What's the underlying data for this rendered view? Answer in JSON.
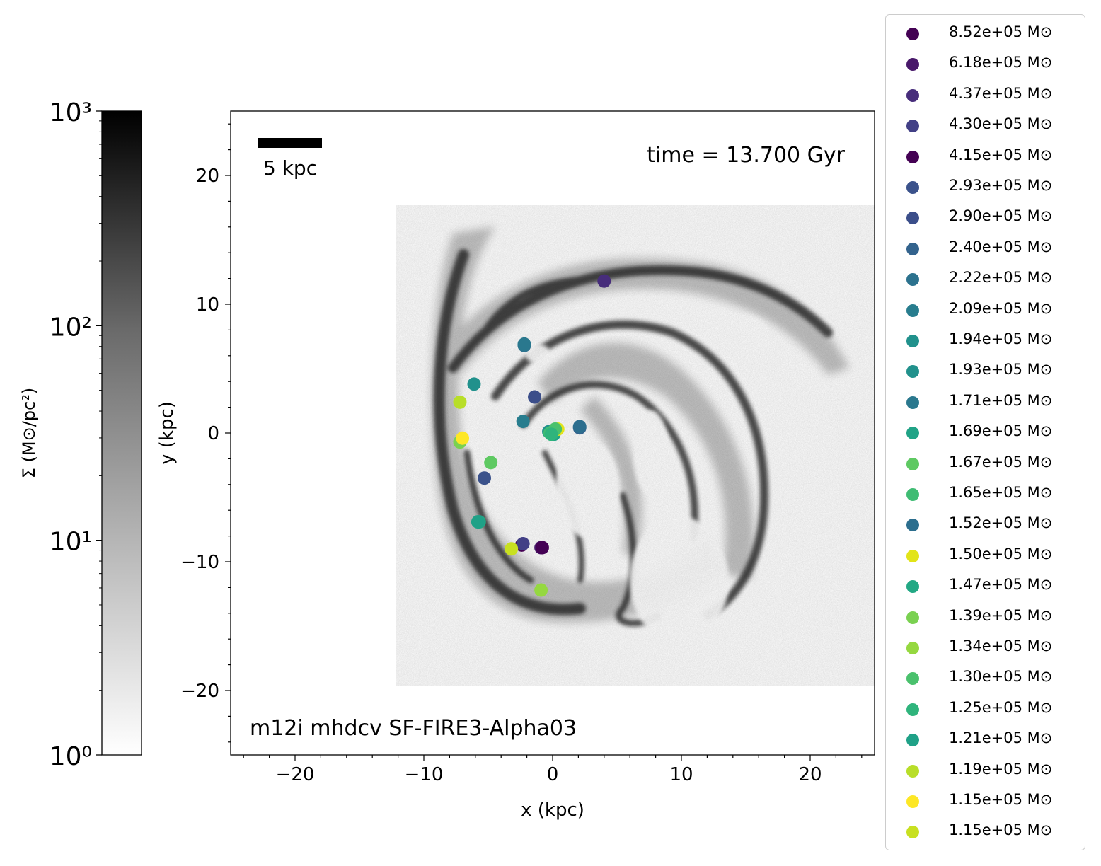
{
  "chart_data": {
    "type": "scatter",
    "title": "",
    "xlabel": "x (kpc)",
    "ylabel": "y (kpc)",
    "xlim": [
      -25,
      25
    ],
    "ylim": [
      -25,
      25
    ],
    "xticks": [
      -20,
      -10,
      0,
      10,
      20
    ],
    "yticks": [
      -20,
      -10,
      0,
      10,
      20
    ],
    "background": "grayscale gas surface density map of a spiral galaxy",
    "annotations": {
      "time": "time = 13.700 Gyr",
      "run_name": "m12i mhdcv SF-FIRE3-Alpha03",
      "scalebar_label": "5 kpc",
      "scalebar_length_kpc": 5
    },
    "colorbar": {
      "label": "Σ (M⊙/pc²)",
      "scale": "log",
      "range": [
        1,
        1000
      ],
      "tick_labels": [
        "10⁰",
        "10¹",
        "10²",
        "10³"
      ],
      "colormap": "gray (white to black)"
    },
    "legend_placement": "outside right",
    "series": [
      {
        "name": "8.52e+05 M⊙",
        "color": "#440154",
        "x": -2.4,
        "y": -8.7
      },
      {
        "name": "6.18e+05 M⊙",
        "color": "#48186a",
        "x": -0.9,
        "y": -8.9
      },
      {
        "name": "4.37e+05 M⊙",
        "color": "#472d7b",
        "x": 4.0,
        "y": 11.8
      },
      {
        "name": "4.30e+05 M⊙",
        "color": "#424086",
        "x": -2.3,
        "y": -8.6
      },
      {
        "name": "4.15e+05 M⊙",
        "color": "#440154",
        "x": -0.8,
        "y": -8.9
      },
      {
        "name": "2.93e+05 M⊙",
        "color": "#3b528b",
        "x": -5.3,
        "y": -3.5
      },
      {
        "name": "2.90e+05 M⊙",
        "color": "#3b4e8a",
        "x": -1.4,
        "y": 2.8
      },
      {
        "name": "2.40e+05 M⊙",
        "color": "#33638d",
        "x": 2.1,
        "y": 0.4
      },
      {
        "name": "2.22e+05 M⊙",
        "color": "#2c728e",
        "x": -2.2,
        "y": 6.8
      },
      {
        "name": "2.09e+05 M⊙",
        "color": "#287d8e",
        "x": -2.3,
        "y": 0.9
      },
      {
        "name": "1.94e+05 M⊙",
        "color": "#21918c",
        "x": -6.1,
        "y": 3.8
      },
      {
        "name": "1.93e+05 M⊙",
        "color": "#21918c",
        "x": -0.3,
        "y": 0.1
      },
      {
        "name": "1.71e+05 M⊙",
        "color": "#2a788e",
        "x": -2.2,
        "y": 6.9
      },
      {
        "name": "1.69e+05 M⊙",
        "color": "#20a386",
        "x": 0.1,
        "y": -0.1
      },
      {
        "name": "1.67e+05 M⊙",
        "color": "#5ec962",
        "x": -4.8,
        "y": -2.3
      },
      {
        "name": "1.65e+05 M⊙",
        "color": "#3fbc73",
        "x": -0.2,
        "y": 0.0
      },
      {
        "name": "1.52e+05 M⊙",
        "color": "#2c6e8e",
        "x": 2.1,
        "y": 0.5
      },
      {
        "name": "1.50e+05 M⊙",
        "color": "#e2e418",
        "x": 0.4,
        "y": 0.3
      },
      {
        "name": "1.47e+05 M⊙",
        "color": "#22a884",
        "x": -5.7,
        "y": -6.9
      },
      {
        "name": "1.39e+05 M⊙",
        "color": "#7ad151",
        "x": -7.2,
        "y": -0.7
      },
      {
        "name": "1.34e+05 M⊙",
        "color": "#95d840",
        "x": -0.9,
        "y": -12.2
      },
      {
        "name": "1.30e+05 M⊙",
        "color": "#4ac16d",
        "x": 0.2,
        "y": 0.3
      },
      {
        "name": "1.25e+05 M⊙",
        "color": "#2fb47c",
        "x": -0.1,
        "y": -0.1
      },
      {
        "name": "1.21e+05 M⊙",
        "color": "#1fa187",
        "x": -5.8,
        "y": -6.9
      },
      {
        "name": "1.19e+05 M⊙",
        "color": "#b8de29",
        "x": -7.2,
        "y": 2.4
      },
      {
        "name": "1.15e+05 M⊙",
        "color": "#fde725",
        "x": -7.0,
        "y": -0.4
      },
      {
        "name": "1.15e+05 M⊙",
        "color": "#c8e020",
        "x": -3.2,
        "y": -9.0
      }
    ]
  }
}
